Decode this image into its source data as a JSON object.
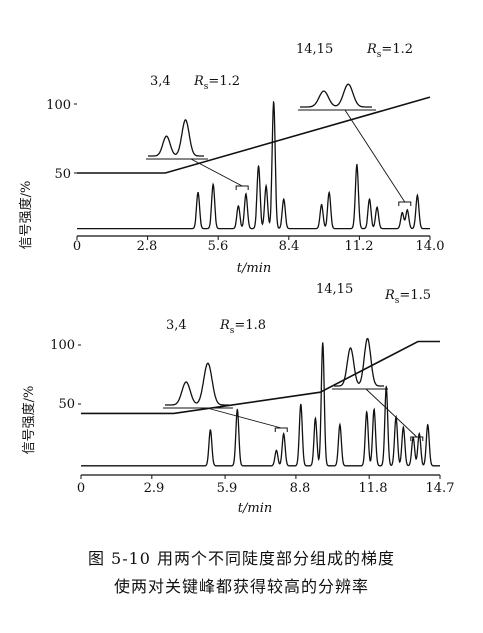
{
  "chart_data": [
    {
      "type": "line",
      "panel": "top",
      "xlabel": "t/min",
      "ylabel": "信号强度/%",
      "xlim": [
        0,
        14.0
      ],
      "ylim": [
        0,
        110
      ],
      "x_ticks": [
        "0",
        "2.8",
        "5.6",
        "8.4",
        "11.2",
        "14.0"
      ],
      "y_ticks": [
        "50",
        "100"
      ],
      "gradient": {
        "x": [
          0,
          3.5,
          14.0
        ],
        "y": [
          50,
          50,
          105
        ]
      },
      "chromatogram": {
        "baseline": 8,
        "peaks": [
          {
            "t": 4.8,
            "h": 27
          },
          {
            "t": 5.4,
            "h": 33
          },
          {
            "t": 6.4,
            "h": 17
          },
          {
            "t": 6.7,
            "h": 26
          },
          {
            "t": 7.2,
            "h": 47
          },
          {
            "t": 7.5,
            "h": 32
          },
          {
            "t": 7.8,
            "h": 95
          },
          {
            "t": 8.2,
            "h": 22
          },
          {
            "t": 9.7,
            "h": 18
          },
          {
            "t": 10.0,
            "h": 27
          },
          {
            "t": 11.1,
            "h": 48
          },
          {
            "t": 11.6,
            "h": 22
          },
          {
            "t": 11.9,
            "h": 16
          },
          {
            "t": 12.9,
            "h": 12
          },
          {
            "t": 13.1,
            "h": 14
          },
          {
            "t": 13.5,
            "h": 25
          }
        ]
      },
      "annotations": [
        {
          "pair": "3,4",
          "rs_symbol": "R",
          "rs_sub": "s",
          "rs_value": "=1.2",
          "peaks": [
            {
              "h": 0.55
            },
            {
              "h": 1.0
            }
          ],
          "points_to_t": 6.55
        },
        {
          "pair": "14,15",
          "rs_symbol": "R",
          "rs_sub": "s",
          "rs_value": "=1.2",
          "peaks": [
            {
              "h": 0.7
            },
            {
              "h": 1.0
            }
          ],
          "points_to_t": 13.0
        }
      ]
    },
    {
      "type": "line",
      "panel": "bottom",
      "xlabel": "t/min",
      "ylabel": "信号强度/%",
      "xlim": [
        0,
        14.7
      ],
      "ylim": [
        0,
        110
      ],
      "x_ticks": [
        "0",
        "2.9",
        "5.9",
        "8.8",
        "11.8",
        "14.7"
      ],
      "y_ticks": [
        "50",
        "100"
      ],
      "gradient": {
        "x": [
          0,
          3.8,
          9.8,
          13.8,
          14.7
        ],
        "y": [
          42,
          42,
          60,
          103,
          103
        ]
      },
      "chromatogram": {
        "baseline": 4,
        "peaks": [
          {
            "t": 5.3,
            "h": 28
          },
          {
            "t": 6.4,
            "h": 44
          },
          {
            "t": 8.0,
            "h": 12
          },
          {
            "t": 8.3,
            "h": 25
          },
          {
            "t": 9.0,
            "h": 48
          },
          {
            "t": 9.6,
            "h": 37
          },
          {
            "t": 9.9,
            "h": 96
          },
          {
            "t": 10.6,
            "h": 32
          },
          {
            "t": 11.7,
            "h": 42
          },
          {
            "t": 12.0,
            "h": 44
          },
          {
            "t": 12.5,
            "h": 62
          },
          {
            "t": 12.9,
            "h": 38
          },
          {
            "t": 13.2,
            "h": 30
          },
          {
            "t": 13.6,
            "h": 22
          },
          {
            "t": 13.85,
            "h": 25
          },
          {
            "t": 14.2,
            "h": 32
          }
        ]
      },
      "annotations": [
        {
          "pair": "3,4",
          "rs_symbol": "R",
          "rs_sub": "s",
          "rs_value": "=1.8",
          "peaks": [
            {
              "h": 0.55
            },
            {
              "h": 1.0
            }
          ],
          "points_to_t": 8.2
        },
        {
          "pair": "14,15",
          "rs_symbol": "R",
          "rs_sub": "s",
          "rs_value": "=1.5",
          "peaks": [
            {
              "h": 0.8
            },
            {
              "h": 1.0
            }
          ],
          "points_to_t": 13.75
        }
      ]
    }
  ],
  "caption": {
    "line1": "图 5-10   用两个不同陡度部分组成的梯度",
    "line2": "使两对关键峰都获得较高的分辨率"
  }
}
